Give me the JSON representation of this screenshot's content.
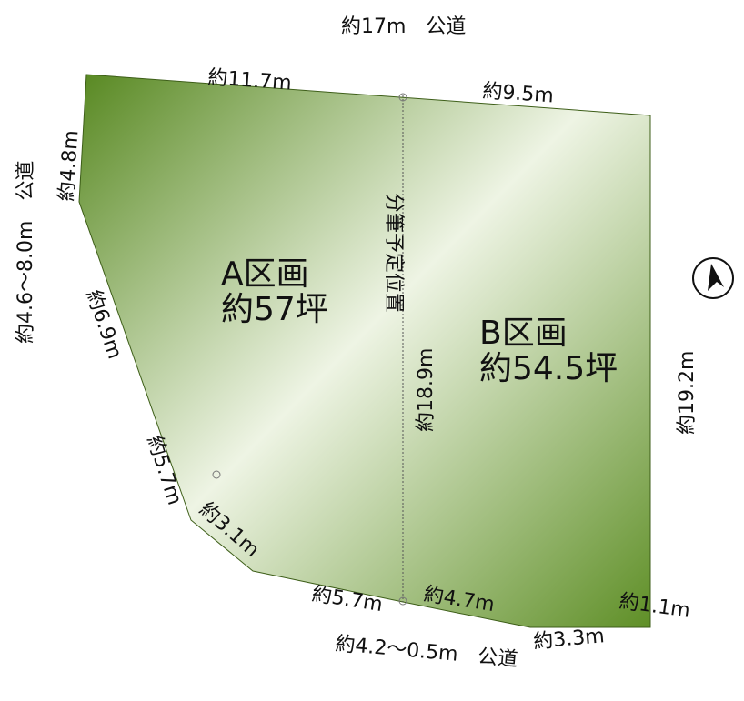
{
  "roads": {
    "north": "約17m　公道",
    "west": "約4.6〜8.0m　公道",
    "south": "約4.2〜0.5m　公道"
  },
  "division_line_label": "分筆予定位置",
  "lots": {
    "a": {
      "name": "A区画",
      "area": "約57坪"
    },
    "b": {
      "name": "B区画",
      "area": "約54.5坪"
    }
  },
  "dimensions": {
    "top_left": "約11.7m",
    "top_right": "約9.5m",
    "left_top": "約4.8m",
    "left_mid": "約6.9m",
    "left_low": "約5.7m",
    "corner_sw": "約3.1m",
    "bottom_left": "約5.7m",
    "bottom_mid": "約4.7m",
    "bottom_right": "約3.3m",
    "corner_se": "約1.1m",
    "right": "約19.2m",
    "division": "約18.9m"
  },
  "north_arrow_icon": "north-arrow-icon",
  "colors": {
    "lot_dark": "#5a8a24",
    "lot_light": "#f2f6ea",
    "outline": "#222222"
  }
}
